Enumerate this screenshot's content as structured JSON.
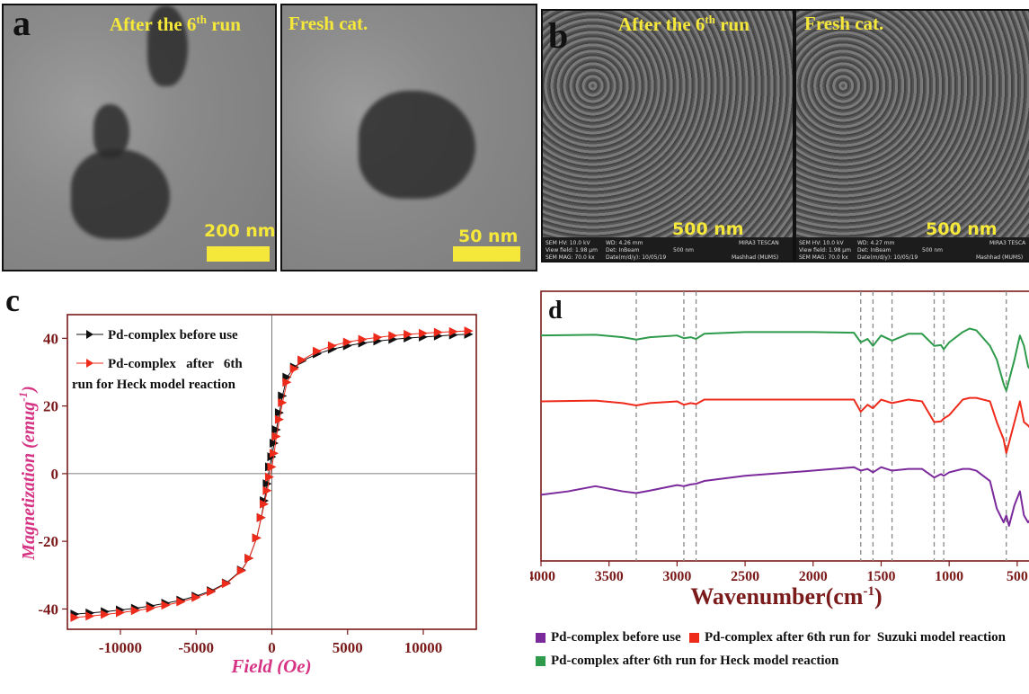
{
  "panel_a": {
    "letter": "a",
    "left": {
      "label_pre": "After the 6",
      "label_sup": "th",
      "label_post": " run",
      "scale": "200 nm"
    },
    "right": {
      "label": "Fresh cat.",
      "scale": "50 nm"
    }
  },
  "panel_b": {
    "letter": "b",
    "left": {
      "label_pre": "After the 6",
      "label_sup": "th",
      "label_post": " run",
      "scale": "500 nm",
      "info": {
        "hv": "SEM HV: 10.0 kV",
        "wd": "WD: 4.26 mm",
        "vf": "View field: 1.98 μm",
        "det": "Det: InBeam",
        "mag": "SEM MAG: 70.0 kx",
        "date": "Date(m/d/y): 10/05/19",
        "bar": "500 nm",
        "brand": "MIRA3 TESCAN",
        "loc": "Mashhad (MUMS)"
      }
    },
    "right": {
      "label": "Fresh cat.",
      "scale": "500 nm",
      "info": {
        "hv": "SEM HV: 10.0 kV",
        "wd": "WD: 4.27 mm",
        "vf": "View field: 1.98 μm",
        "det": "Det: InBeam",
        "mag": "SEM MAG: 70.0 kx",
        "date": "Date(m/d/y): 10/05/19",
        "bar": "500 nm",
        "brand": "MIRA3 TESCA",
        "loc": "Mashhad (MUMS)"
      }
    }
  },
  "chart_data": [
    {
      "panel": "c",
      "type": "scatter",
      "xlabel": "Field (Oe)",
      "ylabel_main": "Magnetization (emug",
      "ylabel_sup": "-1",
      "ylabel_close": ")",
      "xlim": [
        -13500,
        13500
      ],
      "ylim": [
        -46,
        47
      ],
      "x_ticks": [
        -10000,
        -5000,
        0,
        5000,
        10000
      ],
      "x_tick_labels": [
        "-10000",
        "-5000",
        "0",
        "5000",
        "10000"
      ],
      "y_ticks": [
        -40,
        -20,
        0,
        20,
        40
      ],
      "y_tick_labels": [
        "-40",
        "-20",
        "0",
        "20",
        "40"
      ],
      "legend": {
        "s1": "Pd-complex before use",
        "s2_line1": "Pd-complex   after   6th",
        "s2_line2": "run for Heck model reaction"
      },
      "series": [
        {
          "name": "Pd-complex before use",
          "color": "#111111",
          "x": [
            -13000,
            -12000,
            -11000,
            -10000,
            -9000,
            -8000,
            -7000,
            -6000,
            -5000,
            -4000,
            -3000,
            -2000,
            -1500,
            -1000,
            -700,
            -500,
            -300,
            -150,
            0,
            150,
            300,
            500,
            700,
            1000,
            1500,
            2000,
            3000,
            4000,
            5000,
            6000,
            7000,
            8000,
            9000,
            10000,
            11000,
            12000,
            13000
          ],
          "y": [
            -41.5,
            -41.2,
            -40.8,
            -40.3,
            -39.8,
            -39.1,
            -38.3,
            -37.4,
            -36.2,
            -34.6,
            -32.3,
            -28.5,
            -25,
            -19,
            -13,
            -8,
            -3,
            2,
            5,
            9,
            13,
            18,
            23,
            28.5,
            31.5,
            33.3,
            35.4,
            36.8,
            37.8,
            38.6,
            39.2,
            39.7,
            40.1,
            40.4,
            40.7,
            41.0,
            41.2
          ]
        },
        {
          "name": "Pd-complex after 6th run for Heck model reaction",
          "color": "#ee2a1b",
          "x": [
            -13000,
            -12000,
            -11000,
            -10000,
            -9000,
            -8000,
            -7000,
            -6000,
            -5000,
            -4000,
            -3000,
            -2000,
            -1500,
            -1000,
            -700,
            -500,
            -300,
            -150,
            0,
            150,
            300,
            500,
            700,
            1000,
            1500,
            2000,
            3000,
            4000,
            5000,
            6000,
            7000,
            8000,
            9000,
            10000,
            11000,
            12000,
            13000
          ],
          "y": [
            -42.5,
            -42.1,
            -41.6,
            -41.1,
            -40.5,
            -39.8,
            -38.9,
            -37.9,
            -36.6,
            -34.9,
            -32.5,
            -28.7,
            -25,
            -19,
            -13,
            -9,
            -5,
            -1,
            2,
            6,
            11,
            16,
            21,
            27,
            31,
            33.6,
            36.2,
            37.8,
            38.9,
            39.7,
            40.3,
            40.8,
            41.2,
            41.5,
            41.8,
            42.0,
            42.2
          ]
        }
      ]
    },
    {
      "panel": "d",
      "type": "line",
      "xlabel_main": "Wavenumber(cm",
      "xlabel_sup": "-1",
      "xlabel_close": ")",
      "xlim": [
        4000,
        400
      ],
      "x_ticks": [
        4000,
        3500,
        3000,
        2500,
        2000,
        1500,
        1000,
        500
      ],
      "x_tick_labels": [
        "4000",
        "3500",
        "3000",
        "2500",
        "2000",
        "1500",
        "1000",
        "500"
      ],
      "reference_lines": [
        3300,
        2950,
        2860,
        1650,
        1560,
        1420,
        1110,
        1040,
        580
      ],
      "legend": {
        "s1": "Pd-complex before use",
        "s2": "Pd-complex after 6th run for  Suzuki model reaction",
        "s3": "Pd-complex after 6th run for Heck model reaction"
      },
      "series": [
        {
          "name": "Pd-complex after 6th run for Heck model reaction",
          "color": "#2e9a4b",
          "offset": 2.0,
          "x": [
            4000,
            3600,
            3400,
            3300,
            3200,
            3000,
            2950,
            2900,
            2860,
            2800,
            2500,
            2000,
            1700,
            1650,
            1600,
            1560,
            1500,
            1420,
            1300,
            1200,
            1110,
            1060,
            1040,
            1000,
            900,
            850,
            800,
            700,
            650,
            600,
            580,
            560,
            520,
            480,
            450,
            420,
            400
          ],
          "y": [
            0.9,
            0.92,
            0.85,
            0.78,
            0.85,
            0.9,
            0.82,
            0.85,
            0.8,
            0.95,
            1.0,
            1.0,
            0.98,
            0.7,
            0.8,
            0.6,
            0.9,
            0.75,
            0.95,
            0.95,
            0.6,
            0.62,
            0.5,
            0.7,
            1.0,
            1.1,
            1.05,
            0.6,
            0.2,
            -0.5,
            -0.7,
            -0.4,
            0.2,
            0.9,
            0.6,
            0.0,
            -0.1
          ]
        },
        {
          "name": "Pd-complex after 6th run for  Suzuki model reaction",
          "color": "#ee2a1b",
          "offset": 1.0,
          "x": [
            4000,
            3600,
            3400,
            3300,
            3200,
            3000,
            2950,
            2900,
            2860,
            2800,
            2500,
            2000,
            1700,
            1650,
            1600,
            1560,
            1500,
            1420,
            1300,
            1200,
            1110,
            1060,
            1040,
            1000,
            900,
            850,
            800,
            700,
            650,
            600,
            580,
            560,
            520,
            480,
            450,
            420,
            400
          ],
          "y": [
            0.9,
            0.92,
            0.85,
            0.78,
            0.85,
            0.9,
            0.8,
            0.85,
            0.82,
            0.95,
            0.95,
            0.95,
            0.95,
            0.6,
            0.8,
            0.7,
            0.95,
            0.85,
            0.95,
            0.9,
            0.3,
            0.32,
            0.4,
            0.5,
            0.95,
            1.0,
            1.0,
            0.9,
            0.3,
            -0.2,
            -0.6,
            -0.3,
            0.3,
            0.9,
            0.3,
            0.2,
            0.1
          ]
        },
        {
          "name": "Pd-complex before use",
          "color": "#7b2a9c",
          "offset": 0.0,
          "x": [
            4000,
            3800,
            3600,
            3400,
            3300,
            3200,
            3000,
            2950,
            2900,
            2860,
            2800,
            2500,
            2000,
            1700,
            1650,
            1600,
            1560,
            1500,
            1420,
            1300,
            1200,
            1110,
            1060,
            1040,
            1000,
            900,
            850,
            800,
            700,
            650,
            600,
            580,
            560,
            520,
            480,
            450,
            420,
            400
          ],
          "y": [
            0.1,
            0.2,
            0.35,
            0.2,
            0.15,
            0.22,
            0.38,
            0.35,
            0.4,
            0.42,
            0.5,
            0.65,
            0.8,
            0.9,
            0.8,
            0.85,
            0.75,
            0.9,
            0.8,
            0.85,
            0.85,
            0.6,
            0.7,
            0.65,
            0.75,
            0.85,
            0.85,
            0.8,
            0.5,
            -0.3,
            -0.7,
            -0.5,
            -0.8,
            -0.2,
            0.2,
            -0.5,
            -0.7,
            -0.6
          ]
        }
      ]
    }
  ]
}
